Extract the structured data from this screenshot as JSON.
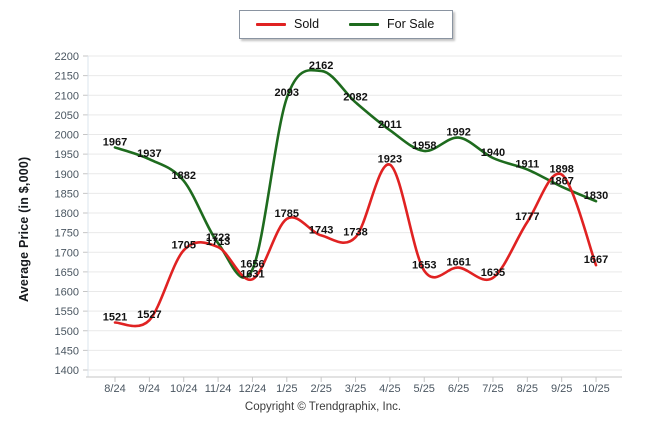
{
  "legend": {
    "items": [
      {
        "label": "Sold",
        "color": "#e02222"
      },
      {
        "label": "For Sale",
        "color": "#1e6b1e"
      }
    ]
  },
  "footer": {
    "copyright": "Copyright © Trendgraphix, Inc."
  },
  "colors": {
    "sold": "#e02222",
    "for_sale": "#1e6b1e",
    "grid": "#e9e9e9",
    "axis": "#c6c6c6",
    "tick_text": "#4a5661",
    "data_label": "#111111",
    "y_axis_line": "#dbe4ee"
  },
  "chart_data": {
    "type": "line",
    "title": "",
    "ylabel": "Average Price (in $,000)",
    "xlabel": "",
    "ylim": [
      1400,
      2200
    ],
    "ytick_step": 50,
    "grid": true,
    "legend_position": "top-center",
    "x": [
      "8/24",
      "9/24",
      "10/24",
      "11/24",
      "12/24",
      "1/25",
      "2/25",
      "3/25",
      "4/25",
      "5/25",
      "6/25",
      "7/25",
      "8/25",
      "9/25",
      "10/25"
    ],
    "series": [
      {
        "name": "Sold",
        "color": "#e02222",
        "values": [
          1521,
          1527,
          1705,
          1713,
          1631,
          1785,
          1743,
          1738,
          1923,
          1653,
          1661,
          1635,
          1777,
          1898,
          1667
        ]
      },
      {
        "name": "For Sale",
        "color": "#1e6b1e",
        "values": [
          1967,
          1937,
          1882,
          1723,
          1656,
          2093,
          2162,
          2082,
          2011,
          1958,
          1992,
          1940,
          1911,
          1867,
          1830
        ]
      }
    ]
  }
}
